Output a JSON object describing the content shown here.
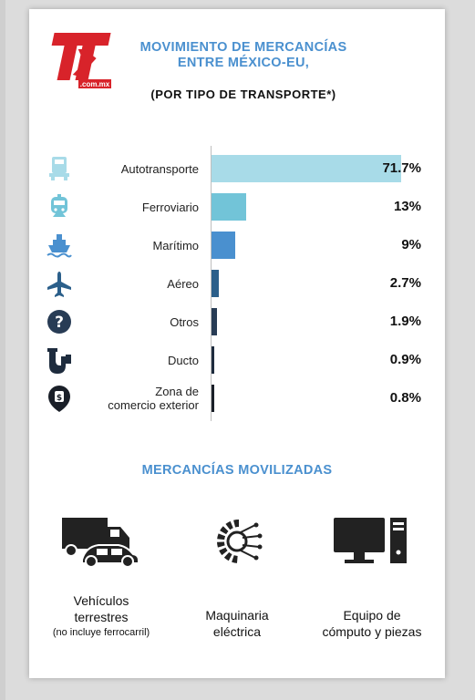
{
  "header": {
    "logo_text": "TyT",
    "logo_sub": ".com.mx",
    "title_line1": "MOVIMIENTO DE MERCANCÍAS",
    "title_line2": "ENTRE MÉXICO-EU,",
    "subtitle": "(POR TIPO DE TRANSPORTE*)"
  },
  "chart_data": {
    "type": "bar",
    "orientation": "horizontal",
    "categories": [
      "Autotransporte",
      "Ferroviario",
      "Marítimo",
      "Aéreo",
      "Otros",
      "Ducto",
      "Zona de comercio exterior"
    ],
    "values": [
      71.7,
      13,
      9,
      2.7,
      1.9,
      0.9,
      0.8
    ],
    "value_labels": [
      "71.7%",
      "13%",
      "9%",
      "2.7%",
      "1.9%",
      "0.9%",
      "0.8%"
    ],
    "label_lines": [
      [
        "Autotransporte"
      ],
      [
        "Ferroviario"
      ],
      [
        "Marítimo"
      ],
      [
        "Aéreo"
      ],
      [
        "Otros"
      ],
      [
        "Ducto"
      ],
      [
        "Zona de",
        "comercio exterior"
      ]
    ],
    "icons": [
      "truck-icon",
      "train-icon",
      "ship-icon",
      "airplane-icon",
      "question-icon",
      "pipe-icon",
      "money-location-icon"
    ],
    "bar_colors": [
      "#a8dbe8",
      "#72c4d8",
      "#4a90cf",
      "#2b5f8a",
      "#283c55",
      "#1e2c3e",
      "#1a1f28"
    ],
    "icon_colors": [
      "#a8dbe8",
      "#72c4d8",
      "#4a90cf",
      "#2b5f8a",
      "#283c55",
      "#1e2c3e",
      "#1a1f28"
    ],
    "xlim": [
      0,
      100
    ],
    "grid": false,
    "legend": "none"
  },
  "section2": {
    "title": "MERCANCÍAS MOVILIZADAS",
    "items": [
      {
        "line1": "Vehículos",
        "line2": "terrestres",
        "note": "(no incluye ferrocarril)",
        "icon": "vehicles-icon"
      },
      {
        "line1": "Maquinaria",
        "line2": "eléctrica",
        "note": "",
        "icon": "gear-circuit-icon"
      },
      {
        "line1": "Equipo de",
        "line2": "cómputo y piezas",
        "note": "",
        "icon": "computer-icon"
      }
    ]
  },
  "colors": {
    "accent": "#4a90cf",
    "logo_red": "#d8232a",
    "dark": "#222222"
  }
}
